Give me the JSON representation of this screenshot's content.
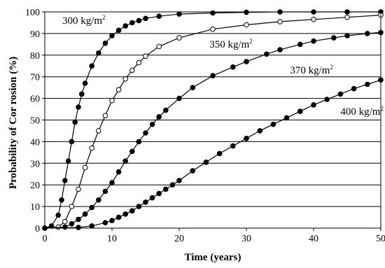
{
  "chart_data": {
    "type": "line",
    "title": "",
    "xlabel": "Time (years)",
    "ylabel": "Probability of Cor rosion (%)",
    "xlim": [
      0,
      50
    ],
    "ylim": [
      0,
      100
    ],
    "x_ticks": [
      0,
      10,
      20,
      30,
      40,
      50
    ],
    "y_ticks": [
      0,
      10,
      20,
      30,
      40,
      50,
      60,
      70,
      80,
      90,
      100
    ],
    "grid": "horizontal",
    "legend": "none",
    "series": [
      {
        "marker": "filled",
        "color": "#000000",
        "x": [
          0,
          1,
          2,
          2.5,
          3,
          3.5,
          4,
          4.5,
          5,
          5.5,
          6,
          7,
          8,
          9,
          10,
          11,
          12,
          13,
          14,
          15,
          17,
          20,
          25,
          30,
          35,
          40,
          45,
          50
        ],
        "y": [
          0,
          1,
          6,
          13,
          22,
          31,
          40,
          49,
          56,
          62,
          67,
          75,
          81,
          85.5,
          89,
          91.5,
          93.5,
          95,
          96,
          97,
          98,
          99,
          99.5,
          99.8,
          100,
          100,
          100,
          100
        ]
      },
      {
        "marker": "open",
        "color": "#000000",
        "x": [
          0,
          2,
          3,
          4,
          5,
          6,
          7,
          8,
          9,
          10,
          11,
          12,
          13,
          14,
          15,
          17,
          20,
          25,
          30,
          35,
          40,
          45,
          50
        ],
        "y": [
          0,
          0.5,
          3,
          10,
          18,
          28,
          37,
          45,
          52,
          59,
          64,
          69,
          73,
          76.5,
          79.5,
          84,
          88,
          92,
          94,
          95.5,
          96.5,
          97.5,
          98.5
        ]
      },
      {
        "marker": "filled",
        "color": "#000000",
        "x": [
          0,
          3,
          4,
          5,
          6,
          7,
          8,
          9,
          10,
          11,
          12,
          13,
          14,
          15,
          16,
          17,
          18,
          20,
          22,
          25,
          28,
          30,
          33,
          35,
          38,
          40,
          43,
          45,
          48,
          50
        ],
        "y": [
          0,
          0.5,
          2,
          4,
          6.5,
          9.5,
          13,
          17,
          21,
          26,
          31,
          35.5,
          40,
          44,
          48,
          51.5,
          54.5,
          60,
          65,
          70.5,
          74.5,
          77,
          80.5,
          82.5,
          85,
          86.5,
          88,
          89,
          90,
          90.5
        ]
      },
      {
        "marker": "filled",
        "color": "#000000",
        "x": [
          0,
          5,
          7,
          9,
          10,
          11,
          12,
          13,
          14,
          15,
          16,
          17,
          18,
          19,
          20,
          22,
          24,
          26,
          28,
          30,
          32,
          34,
          36,
          38,
          40,
          42,
          44,
          46,
          48,
          50
        ],
        "y": [
          0,
          0.3,
          1,
          2.5,
          3.5,
          5,
          6.5,
          8,
          10,
          12,
          14,
          16,
          18,
          20,
          22,
          26.5,
          30.5,
          34.5,
          38,
          41.5,
          45,
          48,
          51,
          54,
          57,
          59.5,
          62,
          64.5,
          66.5,
          68.5
        ]
      }
    ],
    "annotations": [
      {
        "text": "300 kg/m",
        "sup": "2",
        "at_x": 2.6,
        "at_y": 94.5
      },
      {
        "text": "350 kg/m",
        "sup": "2",
        "at_x": 24.5,
        "at_y": 83.5
      },
      {
        "text": "370 kg/m",
        "sup": "2",
        "at_x": 36.5,
        "at_y": 71.5
      },
      {
        "text": "400 kg/m",
        "sup": "2",
        "at_x": 44.0,
        "at_y": 52.5
      }
    ]
  }
}
